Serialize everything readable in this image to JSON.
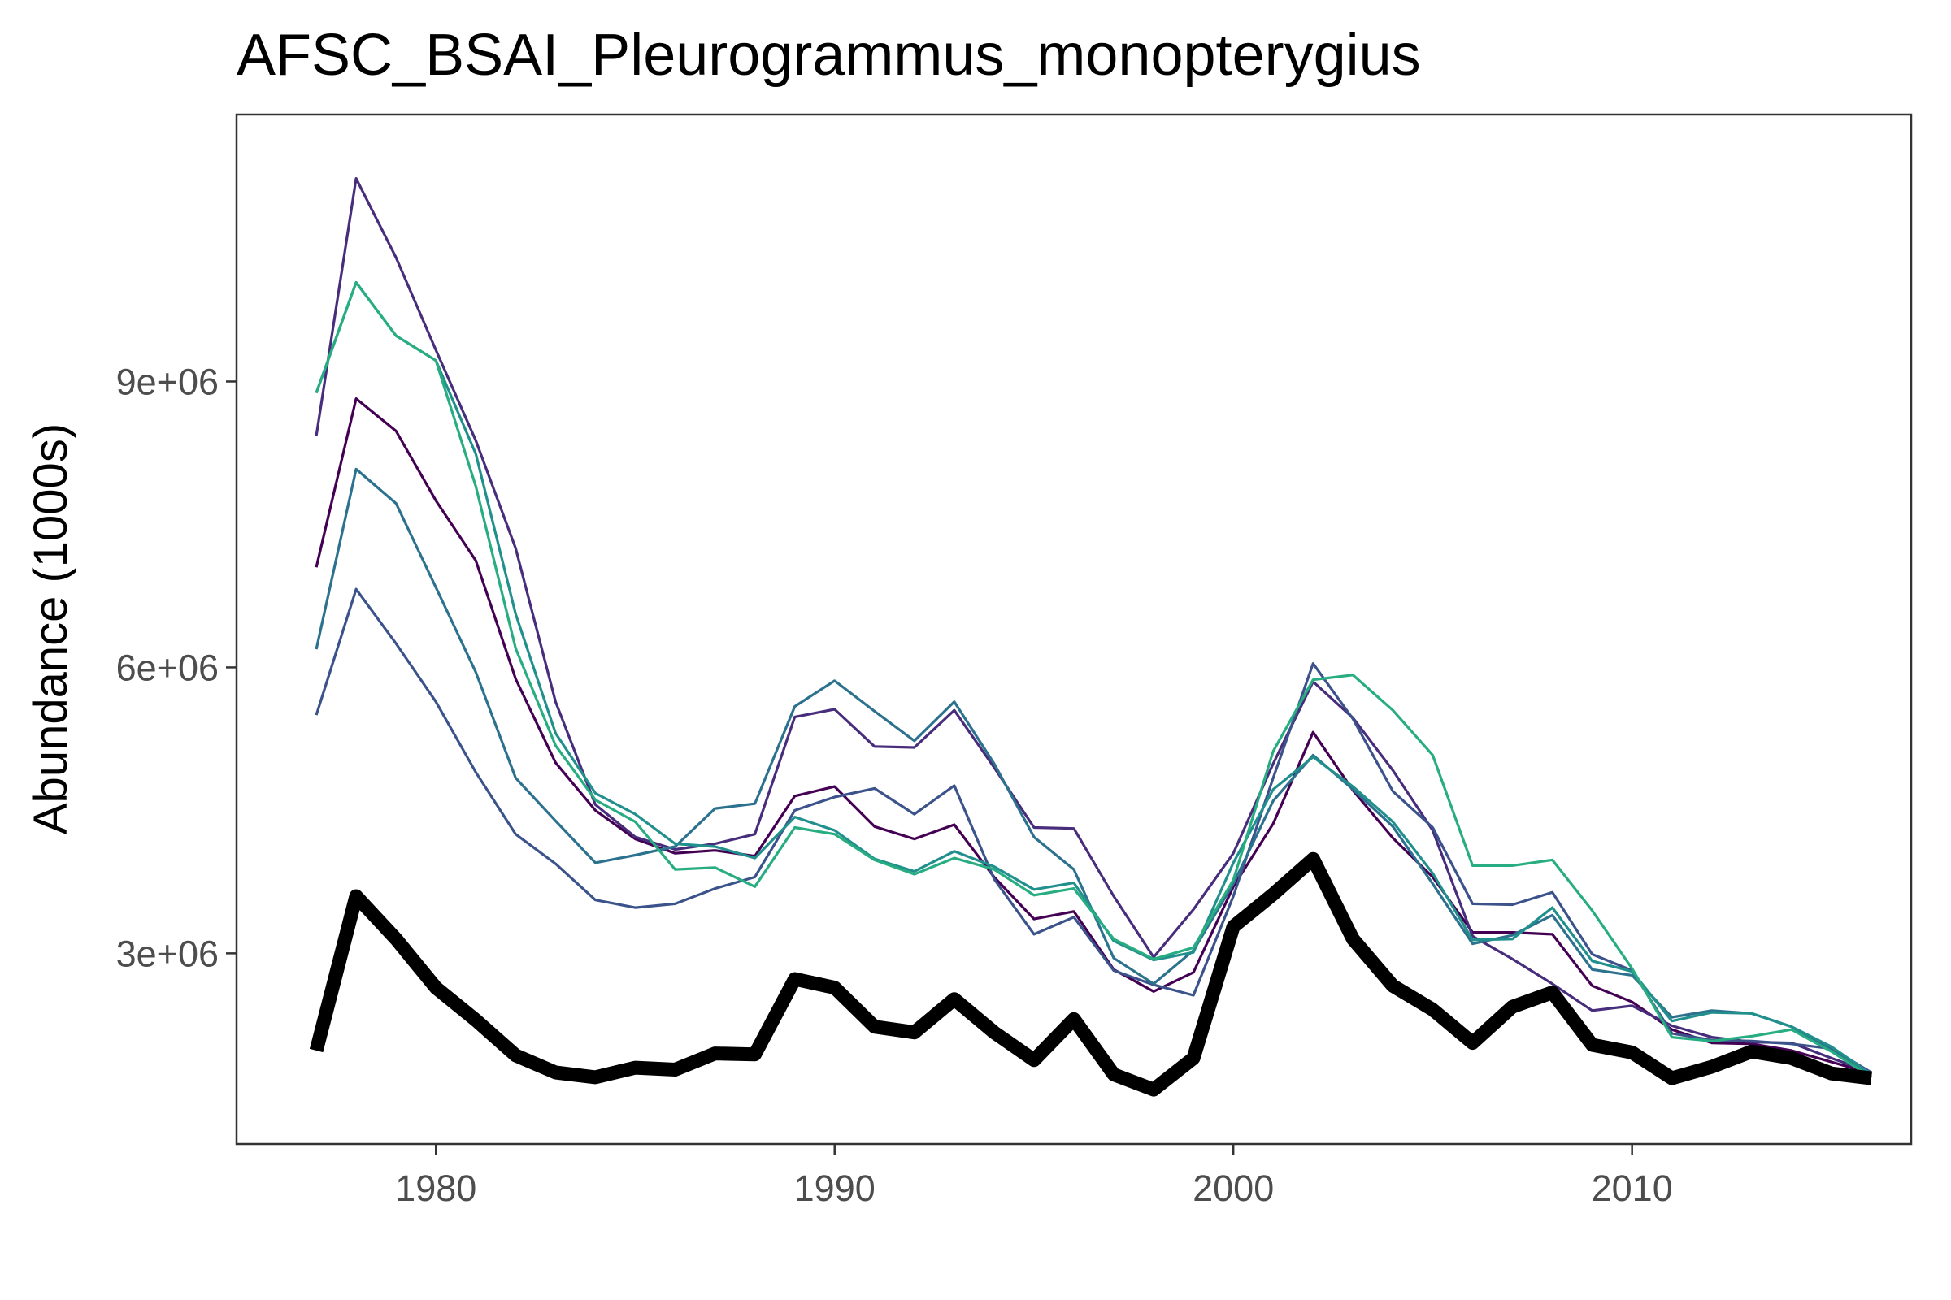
{
  "chart_data": {
    "type": "line",
    "title": "AFSC_BSAI_Pleurogrammus_monopterygius",
    "ylabel": "Abundance (1000s)",
    "xlabel": "",
    "xlim": [
      1975,
      2017
    ],
    "ylim": [
      1000000,
      11800000
    ],
    "x_ticks": [
      1980,
      1990,
      2000,
      2010
    ],
    "x_tick_labels": [
      "1980",
      "1990",
      "2000",
      "2010"
    ],
    "y_ticks": [
      3000000,
      6000000,
      9000000
    ],
    "y_tick_labels": [
      "3e+06",
      "6e+06",
      "9e+06"
    ],
    "grid": false,
    "legend": "none",
    "x": [
      1977,
      1978,
      1979,
      1980,
      1981,
      1982,
      1983,
      1984,
      1985,
      1986,
      1987,
      1988,
      1989,
      1990,
      1991,
      1992,
      1993,
      1994,
      1995,
      1996,
      1997,
      1998,
      1999,
      2000,
      2001,
      2002,
      2003,
      2004,
      2005,
      2006,
      2007,
      2008,
      2009,
      2010,
      2011,
      2012,
      2013,
      2014,
      2015,
      2016
    ],
    "series": [
      {
        "color": "#440154",
        "width": "thin",
        "values": [
          7050000,
          8820000,
          8480000,
          7750000,
          7120000,
          5880000,
          5000000,
          4500000,
          4200000,
          4050000,
          4080000,
          4020000,
          4650000,
          4750000,
          4330000,
          4200000,
          4350000,
          3800000,
          3360000,
          3440000,
          2830000,
          2600000,
          2800000,
          3700000,
          4360000,
          5320000,
          4710000,
          4210000,
          3800000,
          3220000,
          3220000,
          3200000,
          2660000,
          2490000,
          2200000,
          2060000,
          2050000,
          1980000,
          1860000,
          1740000
        ]
      },
      {
        "color": "#472d7b",
        "width": "thin",
        "values": [
          8430000,
          11130000,
          10300000,
          9330000,
          8380000,
          7250000,
          5640000,
          4560000,
          4220000,
          4090000,
          4150000,
          4250000,
          5480000,
          5560000,
          5170000,
          5160000,
          5550000,
          4950000,
          4320000,
          4310000,
          3600000,
          2960000,
          3460000,
          4050000,
          4990000,
          5850000,
          5470000,
          4920000,
          4290000,
          3180000,
          2940000,
          2680000,
          2400000,
          2450000,
          2240000,
          2120000,
          2070000,
          2060000,
          1900000,
          1750000
        ]
      },
      {
        "color": "#3b528b",
        "width": "thin",
        "values": [
          5500000,
          6820000,
          6250000,
          5640000,
          4900000,
          4250000,
          3940000,
          3560000,
          3480000,
          3520000,
          3680000,
          3800000,
          4500000,
          4640000,
          4730000,
          4460000,
          4760000,
          3780000,
          3200000,
          3380000,
          2820000,
          2670000,
          2560000,
          3600000,
          4840000,
          6040000,
          5460000,
          4700000,
          4320000,
          3520000,
          3510000,
          3640000,
          2990000,
          2820000,
          2160000,
          2090000,
          2080000,
          2050000,
          2000000,
          1750000
        ]
      },
      {
        "color": "#2c728e",
        "width": "thin",
        "values": [
          6190000,
          8080000,
          7720000,
          6840000,
          5950000,
          4840000,
          4390000,
          3950000,
          4030000,
          4120000,
          4520000,
          4570000,
          5590000,
          5860000,
          5540000,
          5230000,
          5640000,
          4990000,
          4220000,
          3880000,
          2950000,
          2680000,
          3030000,
          3730000,
          4600000,
          5080000,
          4720000,
          4330000,
          3730000,
          3100000,
          3190000,
          3400000,
          2830000,
          2770000,
          2330000,
          2400000,
          2370000,
          2230000,
          1990000,
          1700000
        ]
      },
      {
        "color": "#21908d",
        "width": "thin",
        "values": [
          8880000,
          10040000,
          9480000,
          9220000,
          8240000,
          6560000,
          5310000,
          4680000,
          4460000,
          4150000,
          4120000,
          4000000,
          4430000,
          4290000,
          3990000,
          3860000,
          4070000,
          3910000,
          3670000,
          3740000,
          3130000,
          2930000,
          3010000,
          3950000,
          4720000,
          5060000,
          4750000,
          4380000,
          3840000,
          3140000,
          3150000,
          3480000,
          2920000,
          2810000,
          2290000,
          2380000,
          2370000,
          2230000,
          2020000,
          1730000
        ]
      },
      {
        "color": "#27ad81",
        "width": "thin",
        "values": [
          8880000,
          10040000,
          9480000,
          9220000,
          7900000,
          6200000,
          5180000,
          4610000,
          4380000,
          3880000,
          3900000,
          3700000,
          4320000,
          4250000,
          3980000,
          3830000,
          4000000,
          3880000,
          3610000,
          3680000,
          3150000,
          2940000,
          3060000,
          3770000,
          5120000,
          5870000,
          5920000,
          5550000,
          5080000,
          3920000,
          3920000,
          3980000,
          3450000,
          2840000,
          2120000,
          2080000,
          2130000,
          2200000,
          1970000,
          1700000
        ]
      },
      {
        "color": "#000000",
        "width": "thick",
        "values": [
          1980000,
          3600000,
          3150000,
          2640000,
          2300000,
          1930000,
          1750000,
          1700000,
          1800000,
          1780000,
          1950000,
          1940000,
          2730000,
          2640000,
          2230000,
          2170000,
          2520000,
          2170000,
          1880000,
          2310000,
          1730000,
          1570000,
          1900000,
          3280000,
          3620000,
          3990000,
          3150000,
          2660000,
          2410000,
          2060000,
          2440000,
          2590000,
          2040000,
          1960000,
          1690000,
          1810000,
          1970000,
          1900000,
          1740000,
          1690000
        ]
      }
    ]
  }
}
